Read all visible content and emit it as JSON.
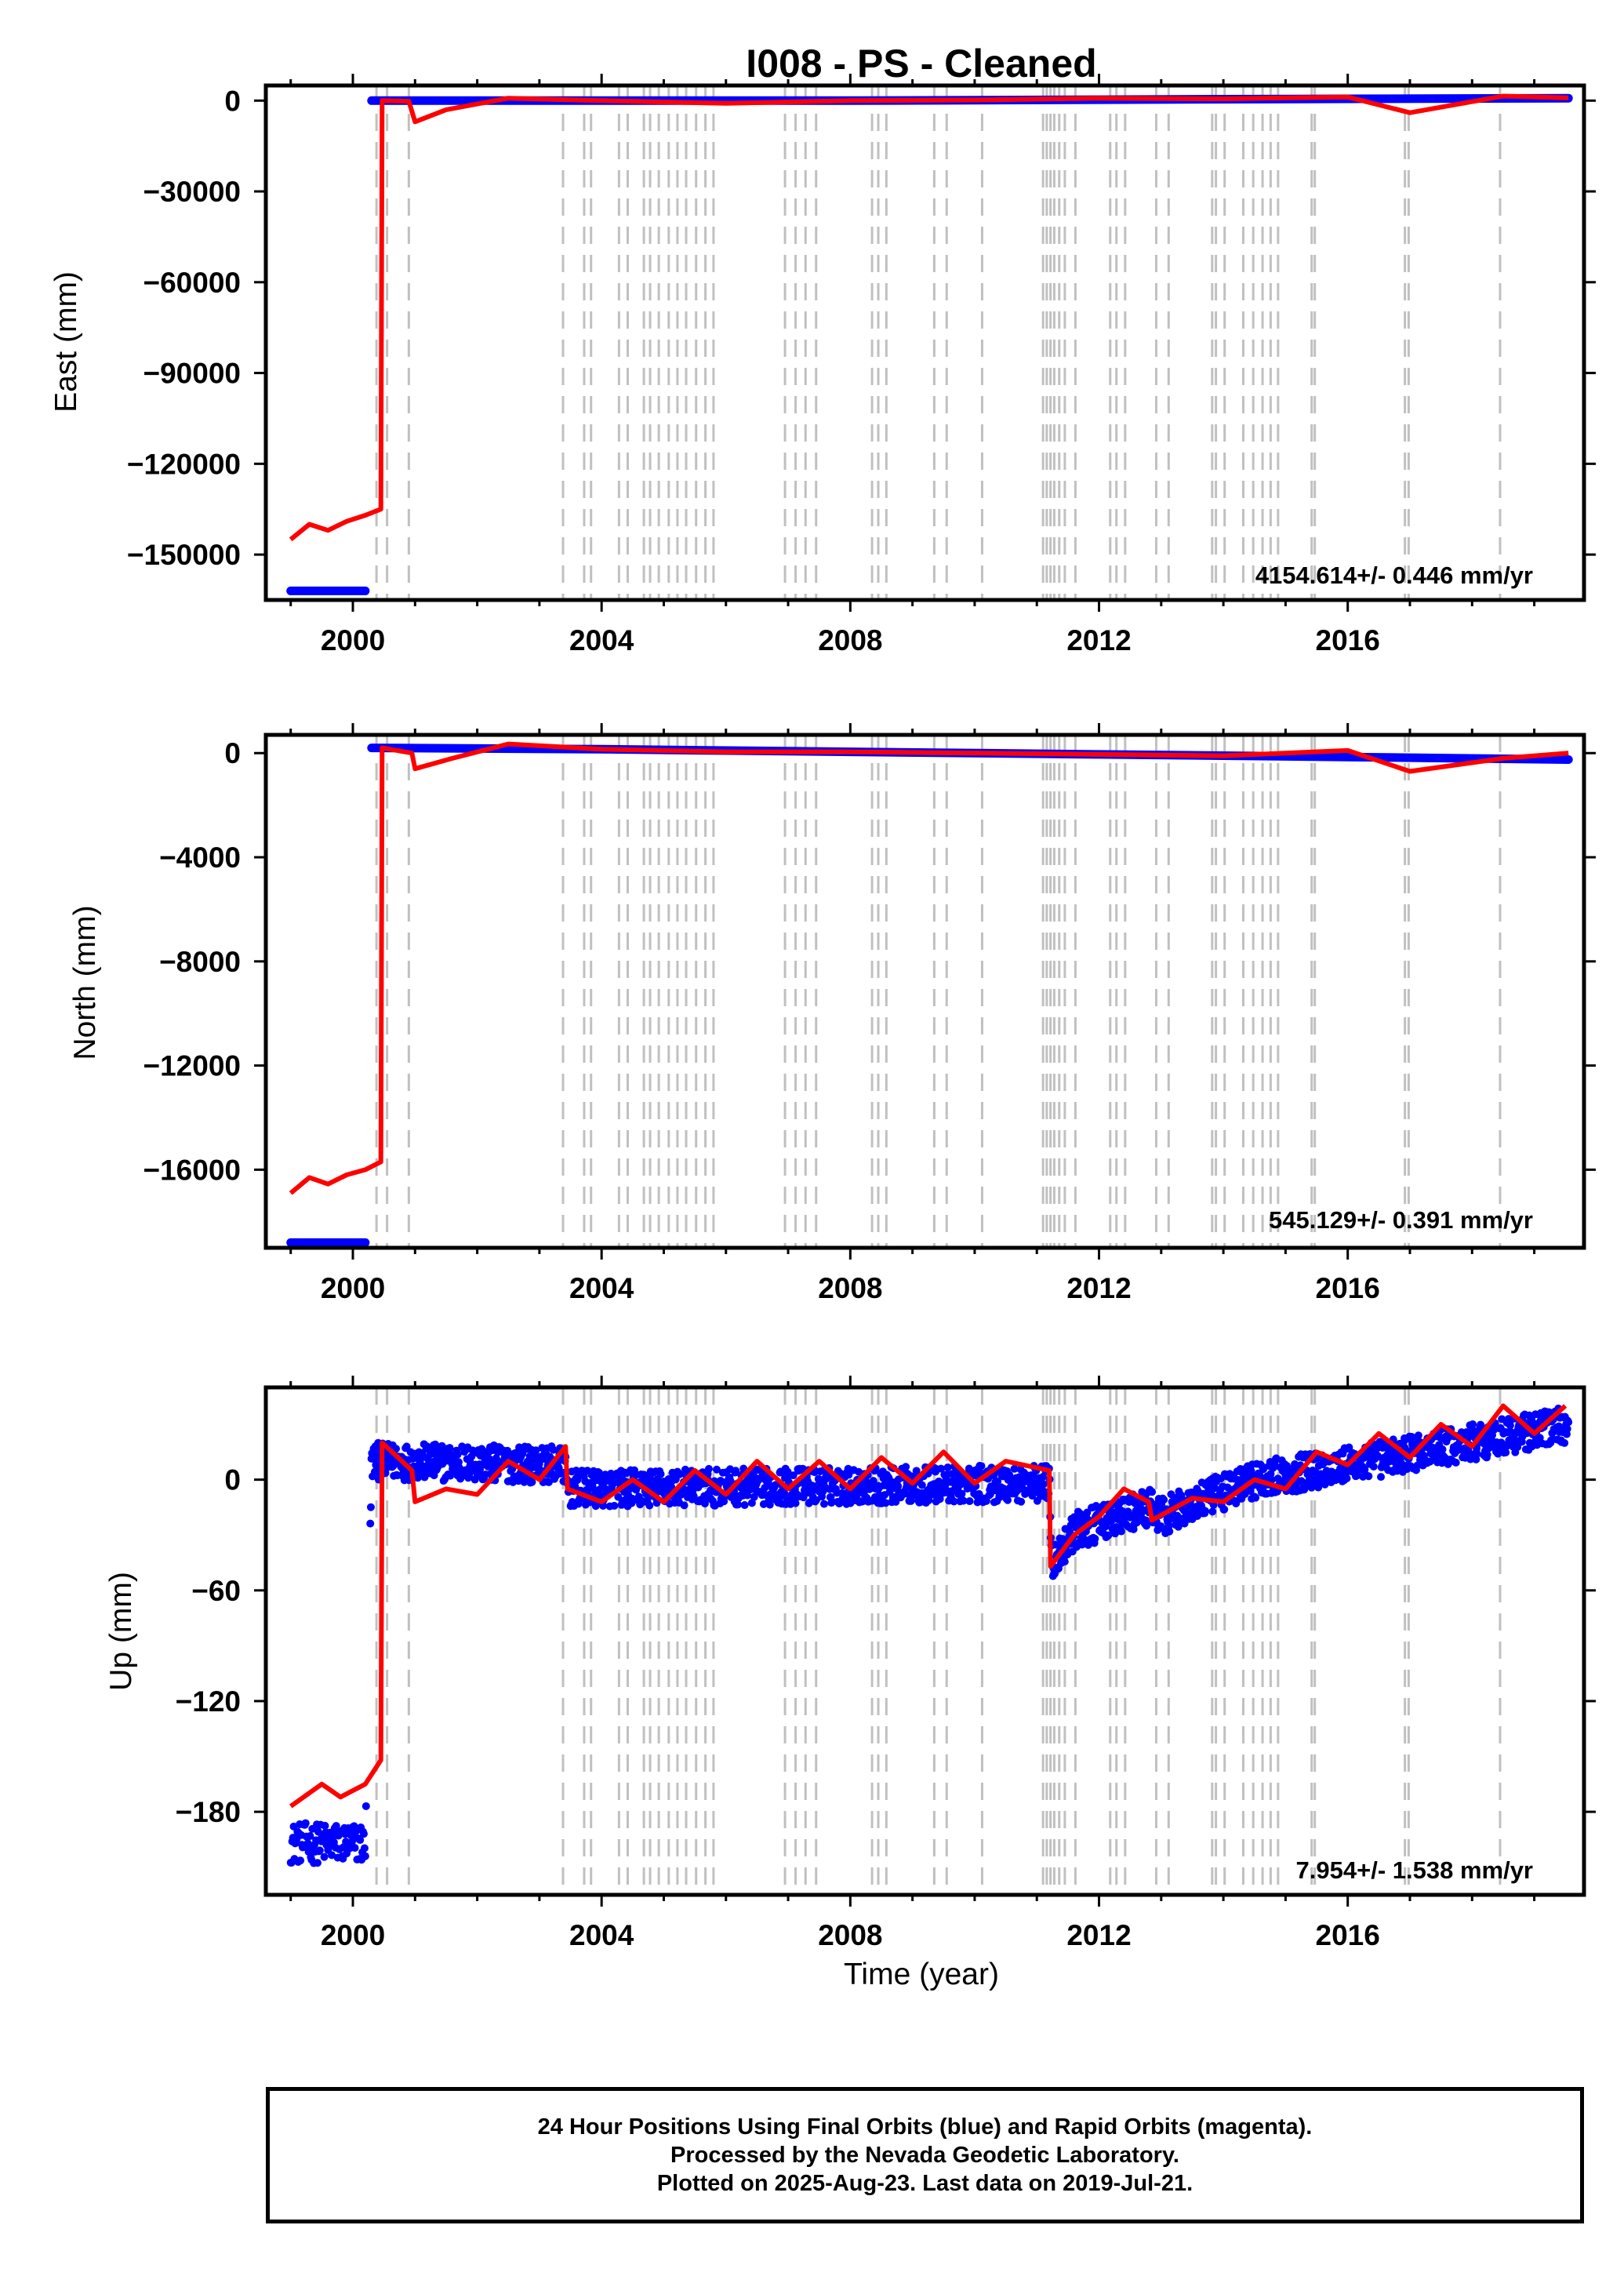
{
  "title": "I008  - PS - Cleaned",
  "xlabel": "Time (year)",
  "footer": {
    "line1": "24 Hour Positions Using Final Orbits (blue) and Rapid Orbits (magenta).",
    "line2": "Processed by the Nevada Geodetic Laboratory.",
    "line3": "Plotted on 2025-Aug-23. Last data on 2019-Jul-21."
  },
  "colors": {
    "final_orbits": "#0000ff",
    "model_fit": "#ff0000",
    "event_lines": "#c0c0c0",
    "frame": "#000000"
  },
  "chart_data": [
    {
      "type": "scatter",
      "panel": "east",
      "ylabel": "East (mm)",
      "xlim": [
        1998.6,
        2019.8
      ],
      "ylim": [
        -165000,
        5000
      ],
      "xticks": [
        "2000",
        "2004",
        "2008",
        "2012",
        "2016"
      ],
      "yticks": [
        "0",
        "−30000",
        "−60000",
        "−90000",
        "−120000",
        "−150000"
      ],
      "ytick_values": [
        0,
        -30000,
        -60000,
        -90000,
        -120000,
        -150000
      ],
      "rate_label": "4154.614+/- 0.446 mm/yr",
      "final_orbits": [
        [
          1999.0,
          -162000
        ],
        [
          1999.5,
          -162000
        ],
        [
          2000.2,
          -162000
        ],
        [
          2000.3,
          0
        ],
        [
          2004,
          0
        ],
        [
          2008,
          0
        ],
        [
          2012,
          300
        ],
        [
          2016,
          600
        ],
        [
          2019.55,
          800
        ]
      ],
      "model": [
        [
          1999.0,
          -145000
        ],
        [
          1999.3,
          -140000
        ],
        [
          1999.6,
          -142000
        ],
        [
          1999.9,
          -139000
        ],
        [
          2000.2,
          -137000
        ],
        [
          2000.45,
          -135000
        ],
        [
          2000.47,
          0
        ],
        [
          2000.9,
          -200
        ],
        [
          2001.0,
          -7000
        ],
        [
          2001.5,
          -3000
        ],
        [
          2002.5,
          800
        ],
        [
          2004,
          0
        ],
        [
          2006,
          -900
        ],
        [
          2008,
          0
        ],
        [
          2010,
          200
        ],
        [
          2012,
          800
        ],
        [
          2014,
          600
        ],
        [
          2016,
          1200
        ],
        [
          2017,
          -4000
        ],
        [
          2018.5,
          1500
        ],
        [
          2019.55,
          900
        ]
      ]
    },
    {
      "type": "scatter",
      "panel": "north",
      "ylabel": "North (mm)",
      "xlim": [
        1998.6,
        2019.8
      ],
      "ylim": [
        -19000,
        700
      ],
      "xticks": [
        "2000",
        "2004",
        "2008",
        "2012",
        "2016"
      ],
      "yticks": [
        "0",
        "−4000",
        "−8000",
        "−12000",
        "−16000"
      ],
      "ytick_values": [
        0,
        -4000,
        -8000,
        -12000,
        -16000
      ],
      "rate_label": "545.129+/- 0.391 mm/yr",
      "final_orbits": [
        [
          1999.0,
          -18800
        ],
        [
          1999.5,
          -18800
        ],
        [
          2000.2,
          -18800
        ],
        [
          2000.3,
          200
        ],
        [
          2004,
          150
        ],
        [
          2008,
          50
        ],
        [
          2012,
          -50
        ],
        [
          2016,
          -150
        ],
        [
          2019.55,
          -250
        ]
      ],
      "model": [
        [
          1999.0,
          -16900
        ],
        [
          1999.3,
          -16300
        ],
        [
          1999.6,
          -16550
        ],
        [
          1999.9,
          -16200
        ],
        [
          2000.2,
          -16000
        ],
        [
          2000.45,
          -15700
        ],
        [
          2000.47,
          200
        ],
        [
          2000.95,
          0
        ],
        [
          2001.0,
          -600
        ],
        [
          2001.6,
          -200
        ],
        [
          2002.5,
          350
        ],
        [
          2004,
          150
        ],
        [
          2006,
          50
        ],
        [
          2008,
          50
        ],
        [
          2010,
          0
        ],
        [
          2012,
          -50
        ],
        [
          2014,
          -100
        ],
        [
          2016,
          100
        ],
        [
          2017,
          -700
        ],
        [
          2018.5,
          -200
        ],
        [
          2019.55,
          0
        ]
      ]
    },
    {
      "type": "scatter",
      "panel": "up",
      "ylabel": "Up (mm)",
      "xlim": [
        1998.6,
        2019.8
      ],
      "ylim": [
        -225,
        50
      ],
      "xticks": [
        "2000",
        "2004",
        "2008",
        "2012",
        "2016"
      ],
      "yticks": [
        "0",
        "−60",
        "−120",
        "−180"
      ],
      "ytick_values": [
        0,
        -60,
        -120,
        -180
      ],
      "rate_label": "7.954+/- 1.538 mm/yr",
      "final_orbits_trend": [
        [
          1999.0,
          -197
        ],
        [
          2000.2,
          -197
        ],
        [
          2000.3,
          10
        ],
        [
          2003.4,
          8
        ],
        [
          2003.45,
          -5
        ],
        [
          2011.2,
          -2
        ],
        [
          2011.25,
          -45
        ],
        [
          2011.6,
          -28
        ],
        [
          2012.8,
          -15
        ],
        [
          2013.0,
          -20
        ],
        [
          2014.5,
          0
        ],
        [
          2016,
          8
        ],
        [
          2019.55,
          30
        ]
      ],
      "model": [
        [
          1999.0,
          -177
        ],
        [
          1999.5,
          -165
        ],
        [
          1999.8,
          -172
        ],
        [
          2000.2,
          -165
        ],
        [
          2000.45,
          -152
        ],
        [
          2000.47,
          20
        ],
        [
          2000.95,
          5
        ],
        [
          2001.0,
          -12
        ],
        [
          2001.5,
          -5
        ],
        [
          2002.0,
          -8
        ],
        [
          2002.5,
          10
        ],
        [
          2003.0,
          0
        ],
        [
          2003.42,
          18
        ],
        [
          2003.45,
          -5
        ],
        [
          2004.0,
          -12
        ],
        [
          2004.5,
          0
        ],
        [
          2005.0,
          -12
        ],
        [
          2005.5,
          5
        ],
        [
          2006.0,
          -8
        ],
        [
          2006.5,
          10
        ],
        [
          2007.0,
          -5
        ],
        [
          2007.5,
          10
        ],
        [
          2008.0,
          -5
        ],
        [
          2008.5,
          12
        ],
        [
          2009.0,
          -2
        ],
        [
          2009.5,
          15
        ],
        [
          2010.0,
          -2
        ],
        [
          2010.5,
          10
        ],
        [
          2011.2,
          5
        ],
        [
          2011.22,
          -47
        ],
        [
          2011.6,
          -30
        ],
        [
          2012.0,
          -20
        ],
        [
          2012.4,
          -5
        ],
        [
          2012.8,
          -12
        ],
        [
          2012.85,
          -22
        ],
        [
          2013.5,
          -10
        ],
        [
          2014.0,
          -12
        ],
        [
          2014.5,
          0
        ],
        [
          2015.0,
          -5
        ],
        [
          2015.5,
          15
        ],
        [
          2016.0,
          8
        ],
        [
          2016.5,
          25
        ],
        [
          2017.0,
          12
        ],
        [
          2017.5,
          30
        ],
        [
          2018.0,
          18
        ],
        [
          2018.5,
          40
        ],
        [
          2019.0,
          25
        ],
        [
          2019.5,
          40
        ]
      ]
    }
  ],
  "event_lines": [
    2000.38,
    2000.55,
    2000.9,
    2003.38,
    2003.72,
    2003.83,
    2004.28,
    2004.42,
    2004.68,
    2004.78,
    2004.92,
    2005.08,
    2005.22,
    2005.36,
    2005.52,
    2005.67,
    2005.8,
    2006.95,
    2007.12,
    2007.28,
    2007.45,
    2008.35,
    2008.45,
    2008.58,
    2009.35,
    2009.55,
    2010.12,
    2011.1,
    2011.16,
    2011.22,
    2011.28,
    2011.36,
    2011.45,
    2011.62,
    2012.18,
    2012.28,
    2012.42,
    2012.92,
    2013.12,
    2013.82,
    2013.88,
    2014.02,
    2014.32,
    2014.48,
    2014.63,
    2014.76,
    2014.88,
    2015.42,
    2015.47,
    2016.92,
    2016.98,
    2018.45
  ]
}
